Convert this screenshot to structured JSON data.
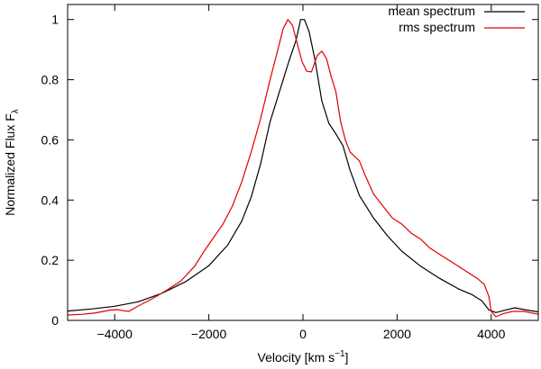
{
  "chart_data": {
    "type": "line",
    "xlabel_main": "Velocity [km s",
    "xlabel_sup": "−1",
    "xlabel_end": "]",
    "ylabel_main": "Normalized Flux F",
    "ylabel_sub": "λ",
    "xlim": [
      -5000,
      5000
    ],
    "ylim": [
      0,
      1.05
    ],
    "xticks": [
      -4000,
      -2000,
      0,
      2000,
      4000
    ],
    "xtick_labels": [
      "−4000",
      "−2000",
      "0",
      "2000",
      "4000"
    ],
    "yticks": [
      0,
      0.2,
      0.4,
      0.6,
      0.8,
      1
    ],
    "ytick_labels": [
      "0",
      "0.2",
      "0.4",
      "0.6",
      "0.8",
      "1"
    ],
    "legend_position": "top-right",
    "series": [
      {
        "name": "mean spectrum",
        "color": "#000000",
        "points": [
          [
            -5000,
            0.031
          ],
          [
            -4500,
            0.038
          ],
          [
            -4000,
            0.047
          ],
          [
            -3500,
            0.062
          ],
          [
            -3000,
            0.09
          ],
          [
            -2500,
            0.128
          ],
          [
            -2000,
            0.182
          ],
          [
            -1600,
            0.25
          ],
          [
            -1300,
            0.33
          ],
          [
            -1100,
            0.41
          ],
          [
            -900,
            0.52
          ],
          [
            -700,
            0.66
          ],
          [
            -500,
            0.76
          ],
          [
            -300,
            0.86
          ],
          [
            -150,
            0.93
          ],
          [
            -50,
            1.0
          ],
          [
            30,
            1.0
          ],
          [
            130,
            0.96
          ],
          [
            250,
            0.87
          ],
          [
            400,
            0.73
          ],
          [
            550,
            0.655
          ],
          [
            700,
            0.62
          ],
          [
            850,
            0.58
          ],
          [
            1000,
            0.5
          ],
          [
            1200,
            0.415
          ],
          [
            1500,
            0.34
          ],
          [
            1800,
            0.28
          ],
          [
            2100,
            0.23
          ],
          [
            2500,
            0.18
          ],
          [
            2900,
            0.14
          ],
          [
            3300,
            0.105
          ],
          [
            3600,
            0.085
          ],
          [
            3800,
            0.065
          ],
          [
            3950,
            0.035
          ],
          [
            4100,
            0.026
          ],
          [
            4300,
            0.034
          ],
          [
            4500,
            0.042
          ],
          [
            4700,
            0.036
          ],
          [
            5000,
            0.028
          ]
        ]
      },
      {
        "name": "rms spectrum",
        "color": "#dd0000",
        "points": [
          [
            -5000,
            0.018
          ],
          [
            -4700,
            0.02
          ],
          [
            -4400,
            0.025
          ],
          [
            -4100,
            0.034
          ],
          [
            -3950,
            0.036
          ],
          [
            -3800,
            0.032
          ],
          [
            -3700,
            0.03
          ],
          [
            -3500,
            0.048
          ],
          [
            -3200,
            0.072
          ],
          [
            -2900,
            0.1
          ],
          [
            -2600,
            0.13
          ],
          [
            -2300,
            0.18
          ],
          [
            -2100,
            0.23
          ],
          [
            -1900,
            0.275
          ],
          [
            -1700,
            0.32
          ],
          [
            -1500,
            0.38
          ],
          [
            -1300,
            0.46
          ],
          [
            -1100,
            0.56
          ],
          [
            -900,
            0.67
          ],
          [
            -700,
            0.8
          ],
          [
            -550,
            0.89
          ],
          [
            -420,
            0.97
          ],
          [
            -320,
            1.0
          ],
          [
            -220,
            0.98
          ],
          [
            -120,
            0.92
          ],
          [
            -20,
            0.86
          ],
          [
            80,
            0.828
          ],
          [
            180,
            0.826
          ],
          [
            300,
            0.88
          ],
          [
            400,
            0.895
          ],
          [
            500,
            0.87
          ],
          [
            600,
            0.81
          ],
          [
            700,
            0.76
          ],
          [
            800,
            0.66
          ],
          [
            900,
            0.6
          ],
          [
            1000,
            0.56
          ],
          [
            1100,
            0.545
          ],
          [
            1200,
            0.53
          ],
          [
            1300,
            0.49
          ],
          [
            1500,
            0.42
          ],
          [
            1700,
            0.38
          ],
          [
            1900,
            0.34
          ],
          [
            2100,
            0.32
          ],
          [
            2300,
            0.29
          ],
          [
            2500,
            0.27
          ],
          [
            2700,
            0.24
          ],
          [
            2900,
            0.22
          ],
          [
            3100,
            0.2
          ],
          [
            3300,
            0.18
          ],
          [
            3500,
            0.16
          ],
          [
            3700,
            0.14
          ],
          [
            3850,
            0.12
          ],
          [
            3950,
            0.08
          ],
          [
            4000,
            0.03
          ],
          [
            4100,
            0.012
          ],
          [
            4250,
            0.022
          ],
          [
            4450,
            0.03
          ],
          [
            4700,
            0.03
          ],
          [
            5000,
            0.02
          ]
        ]
      }
    ]
  }
}
